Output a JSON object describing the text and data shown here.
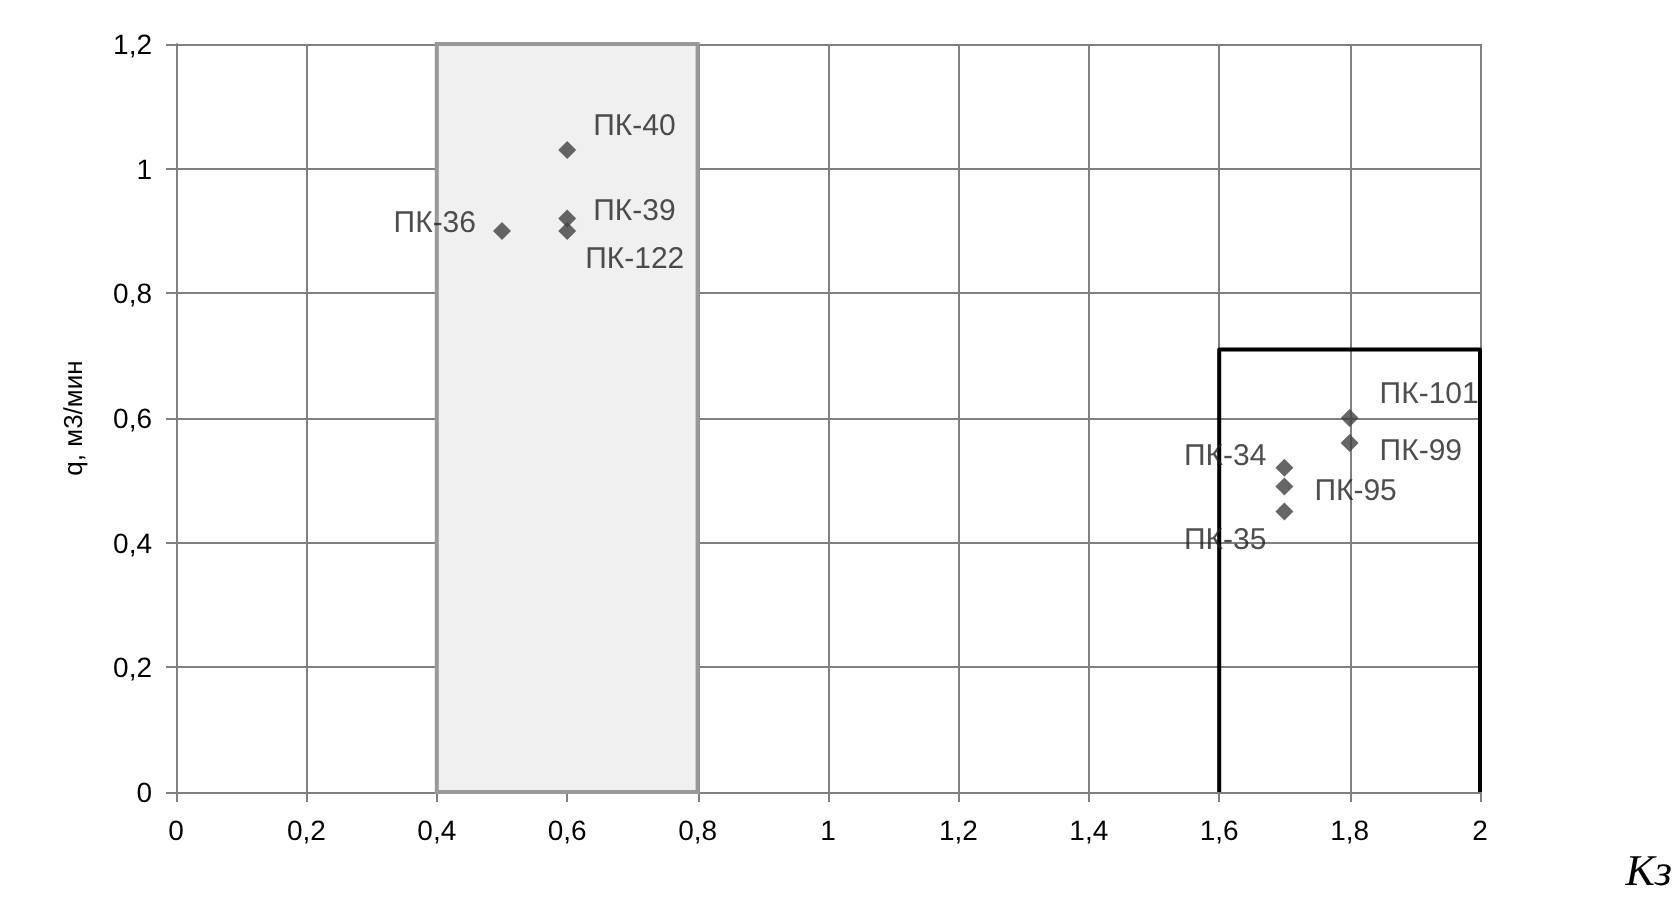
{
  "chart_data": {
    "type": "scatter",
    "xlabel": "Kз",
    "ylabel": "q, м3/мин",
    "marker": "diamond",
    "grid": true,
    "legend": false,
    "xlim": [
      0,
      2
    ],
    "ylim": [
      0,
      1.2
    ],
    "xticks": [
      0,
      {
        "value": 0.2,
        "label": "0,2"
      },
      {
        "value": 0.4,
        "label": "0,4"
      },
      {
        "value": 0.6,
        "label": "0,6"
      },
      {
        "value": 0.8,
        "label": "0,8"
      },
      1,
      {
        "value": 1.2,
        "label": "1,2"
      },
      {
        "value": 1.4,
        "label": "1,4"
      },
      {
        "value": 1.6,
        "label": "1,6"
      },
      {
        "value": 1.8,
        "label": "1,8"
      },
      2
    ],
    "yticks": [
      0,
      {
        "value": 0.2,
        "label": "0,2"
      },
      {
        "value": 0.4,
        "label": "0,4"
      },
      {
        "value": 0.6,
        "label": "0,6"
      },
      {
        "value": 0.8,
        "label": "0,8"
      },
      1,
      {
        "value": 1.2,
        "label": "1,2"
      }
    ],
    "series": [
      {
        "color": "#404040",
        "x": [
          0.6,
          0.6,
          0.6,
          0.5,
          1.8,
          1.8,
          1.7,
          1.7,
          1.7
        ],
        "values": [
          1.03,
          0.92,
          0.9,
          0.9,
          0.6,
          0.56,
          0.52,
          0.49,
          0.45
        ]
      },
      {
        "type": "line",
        "color": "#000000",
        "marker": "none",
        "x": [
          1.6,
          1.6,
          2,
          2
        ],
        "values": [
          0,
          0.71,
          0.71,
          0
        ]
      }
    ],
    "bands": [
      {
        "axis": "x",
        "from": 0.4,
        "to": 0.8,
        "color": "#f0f0f0"
      }
    ],
    "annotations": [
      {
        "text": "ПК-40",
        "x": 0.6,
        "y": 1.03
      },
      {
        "text": "ПК-39",
        "x": 0.6,
        "y": 0.92
      },
      {
        "text": "ПК-122",
        "x": 0.6,
        "y": 0.9
      },
      {
        "text": "ПК-36",
        "x": 0.5,
        "y": 0.9
      },
      {
        "text": "ПК-101",
        "x": 1.8,
        "y": 0.6
      },
      {
        "text": "ПК-99",
        "x": 1.8,
        "y": 0.56
      },
      {
        "text": "ПК-34",
        "x": 1.7,
        "y": 0.52
      },
      {
        "text": "ПК-95",
        "x": 1.7,
        "y": 0.49
      },
      {
        "text": "ПК-35",
        "x": 1.7,
        "y": 0.45
      }
    ]
  }
}
